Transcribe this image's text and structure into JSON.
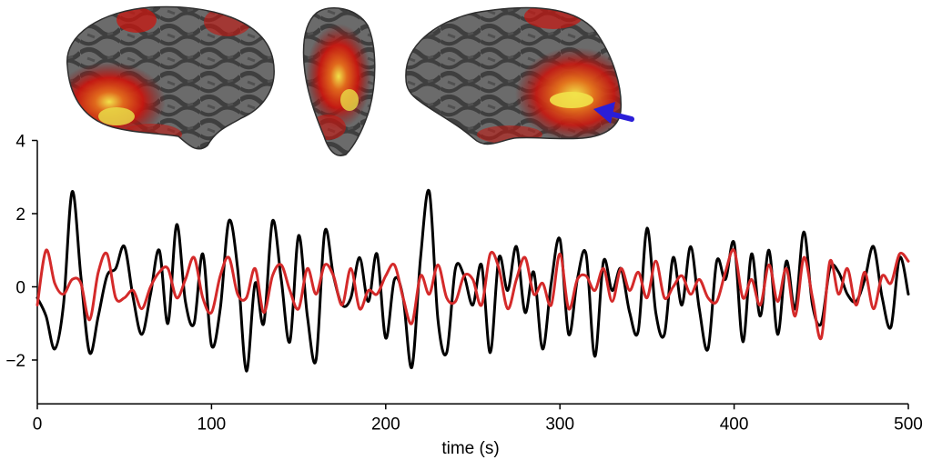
{
  "chart_data": {
    "type": "line",
    "title": "",
    "xlabel": "time (s)",
    "ylabel": "",
    "xlim": [
      0,
      500
    ],
    "ylim": [
      -3.2,
      4
    ],
    "xticks": [
      0,
      100,
      200,
      300,
      400,
      500
    ],
    "xtick_labels": [
      "0",
      "100",
      "200",
      "300",
      "400",
      "500"
    ],
    "yticks": [
      -2,
      0,
      2,
      4
    ],
    "ytick_labels": [
      "−2",
      "0",
      "2",
      "4"
    ],
    "grid": false,
    "legend": "none",
    "series": [
      {
        "color": "#000000",
        "x": [
          0,
          5,
          10,
          15,
          20,
          25,
          30,
          35,
          40,
          45,
          50,
          55,
          60,
          65,
          70,
          75,
          80,
          85,
          90,
          95,
          100,
          105,
          110,
          115,
          120,
          125,
          130,
          135,
          140,
          145,
          150,
          155,
          160,
          165,
          170,
          175,
          180,
          185,
          190,
          195,
          200,
          205,
          210,
          215,
          220,
          225,
          230,
          235,
          240,
          245,
          250,
          255,
          260,
          265,
          270,
          275,
          280,
          285,
          290,
          295,
          300,
          305,
          310,
          315,
          320,
          325,
          330,
          335,
          340,
          345,
          350,
          355,
          360,
          365,
          370,
          375,
          380,
          385,
          390,
          395,
          400,
          405,
          410,
          415,
          420,
          425,
          430,
          435,
          440,
          445,
          450,
          455,
          460,
          465,
          470,
          475,
          480,
          485,
          490,
          495,
          500
        ],
        "y": [
          -0.3,
          -0.8,
          -1.7,
          -0.5,
          2.6,
          0.3,
          -1.8,
          -0.8,
          0.3,
          0.5,
          1.1,
          -0.3,
          -1.3,
          -0.2,
          1.0,
          -1.0,
          1.7,
          -0.4,
          -1.0,
          0.9,
          -1.6,
          -0.6,
          1.8,
          0.5,
          -2.3,
          0.1,
          -1.0,
          1.8,
          0.2,
          -1.5,
          1.4,
          -0.8,
          -2.0,
          1.5,
          0.3,
          -0.5,
          -0.3,
          0.8,
          -0.4,
          0.9,
          -1.4,
          0.2,
          -0.3,
          -2.2,
          0.8,
          2.6,
          -0.9,
          -1.8,
          0.5,
          0.3,
          -0.5,
          0.6,
          -1.8,
          0.8,
          -0.1,
          1.1,
          -0.7,
          0.4,
          -1.7,
          0.1,
          1.3,
          -1.3,
          0.2,
          0.9,
          -1.9,
          0.7,
          -0.1,
          0.5,
          -0.7,
          -1.2,
          1.6,
          -0.7,
          -1.3,
          0.8,
          -0.5,
          1.1,
          -0.6,
          -1.7,
          0.7,
          0.2,
          1.2,
          -1.5,
          0.9,
          -0.8,
          1.0,
          -1.3,
          0.7,
          -0.6,
          1.5,
          -0.5,
          -1.0,
          0.5,
          0.4,
          -0.2,
          -0.4,
          0.2,
          1.1,
          -0.3,
          -1.1,
          0.8,
          -0.2
        ]
      },
      {
        "color": "#d42a2a",
        "x": [
          0,
          5,
          10,
          15,
          20,
          25,
          30,
          35,
          40,
          45,
          50,
          55,
          60,
          65,
          70,
          75,
          80,
          85,
          90,
          95,
          100,
          105,
          110,
          115,
          120,
          125,
          130,
          135,
          140,
          145,
          150,
          155,
          160,
          165,
          170,
          175,
          180,
          185,
          190,
          195,
          200,
          205,
          210,
          215,
          220,
          225,
          230,
          235,
          240,
          245,
          250,
          255,
          260,
          265,
          270,
          275,
          280,
          285,
          290,
          295,
          300,
          305,
          310,
          315,
          320,
          325,
          330,
          335,
          340,
          345,
          350,
          355,
          360,
          365,
          370,
          375,
          380,
          385,
          390,
          395,
          400,
          405,
          410,
          415,
          420,
          425,
          430,
          435,
          440,
          445,
          450,
          455,
          460,
          465,
          470,
          475,
          480,
          485,
          490,
          495,
          500
        ],
        "y": [
          -0.5,
          1.0,
          0.1,
          -0.2,
          0.2,
          0.1,
          -0.9,
          0.4,
          0.9,
          -0.3,
          -0.3,
          -0.1,
          -0.6,
          0.0,
          0.4,
          0.5,
          -0.3,
          0.2,
          0.8,
          -0.3,
          -0.7,
          0.3,
          0.8,
          -0.2,
          -0.3,
          0.5,
          -0.7,
          0.3,
          0.6,
          -0.1,
          -0.6,
          0.5,
          -0.2,
          0.6,
          0.3,
          -0.5,
          0.5,
          -0.6,
          -0.1,
          -0.2,
          0.3,
          0.6,
          -0.3,
          -1.0,
          0.3,
          -0.2,
          0.6,
          -0.3,
          -0.4,
          0.3,
          0.2,
          -0.5,
          0.9,
          0.5,
          -0.6,
          0.2,
          0.8,
          -0.2,
          0.1,
          -0.5,
          0.9,
          -0.6,
          0.2,
          0.3,
          -0.1,
          0.5,
          -0.4,
          0.5,
          -0.1,
          0.4,
          -0.3,
          0.7,
          -0.3,
          0.0,
          0.3,
          -0.2,
          0.2,
          -0.3,
          -0.4,
          0.4,
          1.0,
          -0.3,
          0.2,
          -0.5,
          0.6,
          -0.4,
          0.5,
          -0.8,
          0.8,
          -0.3,
          -1.4,
          0.7,
          -0.2,
          0.5,
          -0.5,
          0.4,
          -0.6,
          0.3,
          0.1,
          0.9,
          0.7
        ]
      }
    ],
    "annotations": [
      {
        "kind": "arrow",
        "color": "#2a1ed8",
        "meaning": "points to highlighted occipital region on right-hemisphere brain view"
      }
    ]
  },
  "brain_views": [
    {
      "name": "left-hemisphere-lateral-view"
    },
    {
      "name": "posterior-view"
    },
    {
      "name": "right-hemisphere-lateral-view"
    }
  ],
  "colors": {
    "cortex_dark": "#3e3e3e",
    "cortex_light": "#6f6f6f",
    "activation_red": "#c8160f",
    "activation_yellow": "#f1e24a",
    "arrow_blue": "#2a1ed8"
  }
}
